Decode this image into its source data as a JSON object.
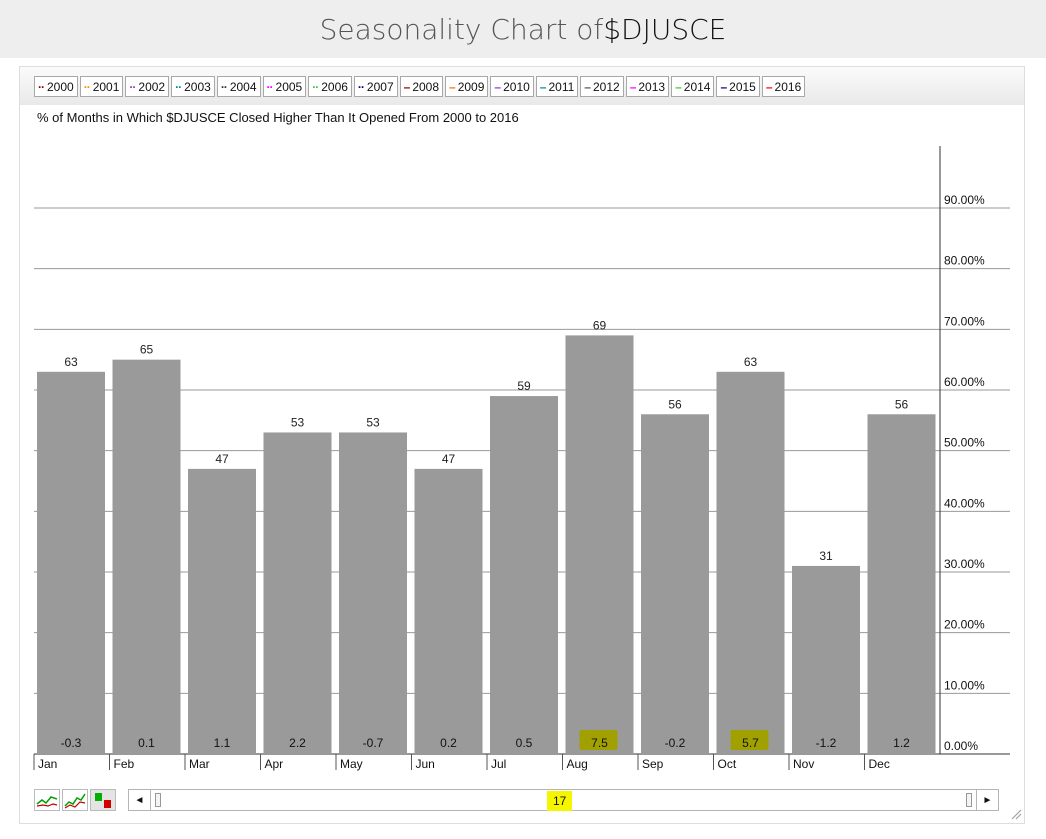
{
  "header": {
    "title_prefix": "Seasonality Chart of ",
    "ticker": "$DJUSCE"
  },
  "legend": [
    {
      "label": "2000",
      "color": "#8b0000",
      "style": "dotted"
    },
    {
      "label": "2001",
      "color": "#ff8c00",
      "style": "dotted"
    },
    {
      "label": "2002",
      "color": "#9932cc",
      "style": "dotted"
    },
    {
      "label": "2003",
      "color": "#008b8b",
      "style": "dotted"
    },
    {
      "label": "2004",
      "color": "#333333",
      "style": "dotted"
    },
    {
      "label": "2005",
      "color": "#ff00ff",
      "style": "dotted"
    },
    {
      "label": "2006",
      "color": "#32cd32",
      "style": "dotted"
    },
    {
      "label": "2007",
      "color": "#000080",
      "style": "dotted"
    },
    {
      "label": "2008",
      "color": "#8b0000",
      "style": "solid"
    },
    {
      "label": "2009",
      "color": "#ff6a00",
      "style": "solid"
    },
    {
      "label": "2010",
      "color": "#9932cc",
      "style": "solid"
    },
    {
      "label": "2011",
      "color": "#008b8b",
      "style": "solid"
    },
    {
      "label": "2012",
      "color": "#555555",
      "style": "solid"
    },
    {
      "label": "2013",
      "color": "#ff00ff",
      "style": "solid"
    },
    {
      "label": "2014",
      "color": "#32cd32",
      "style": "solid"
    },
    {
      "label": "2015",
      "color": "#000080",
      "style": "solid"
    },
    {
      "label": "2016",
      "color": "#ff0000",
      "style": "solid"
    }
  ],
  "chart_data": {
    "type": "bar",
    "subtitle": "% of Months in Which $DJUSCE Closed Higher Than It Opened From 2000 to 2016",
    "categories": [
      "Jan",
      "Feb",
      "Mar",
      "Apr",
      "May",
      "Jun",
      "Jul",
      "Aug",
      "Sep",
      "Oct",
      "Nov",
      "Dec"
    ],
    "values": [
      63,
      65,
      47,
      53,
      53,
      47,
      59,
      69,
      56,
      63,
      31,
      56
    ],
    "bottom_labels": [
      "-0.3",
      "0.1",
      "1.1",
      "2.2",
      "-0.7",
      "0.2",
      "0.5",
      "7.5",
      "-0.2",
      "5.7",
      "-1.2",
      "1.2"
    ],
    "highlighted_bottom_labels": [
      "Aug",
      "Oct"
    ],
    "y_ticks": [
      "0.00%",
      "10.00%",
      "20.00%",
      "30.00%",
      "40.00%",
      "50.00%",
      "60.00%",
      "70.00%",
      "80.00%",
      "90.00%"
    ],
    "ylim": [
      0,
      100
    ],
    "y_axis_position": "right",
    "grid": true,
    "legend_position": "top",
    "bar_color": "#9a9a9a",
    "highlight_color": "#a0a000"
  },
  "scroller": {
    "count": "17",
    "left_arrow": "◄",
    "right_arrow": "►"
  }
}
